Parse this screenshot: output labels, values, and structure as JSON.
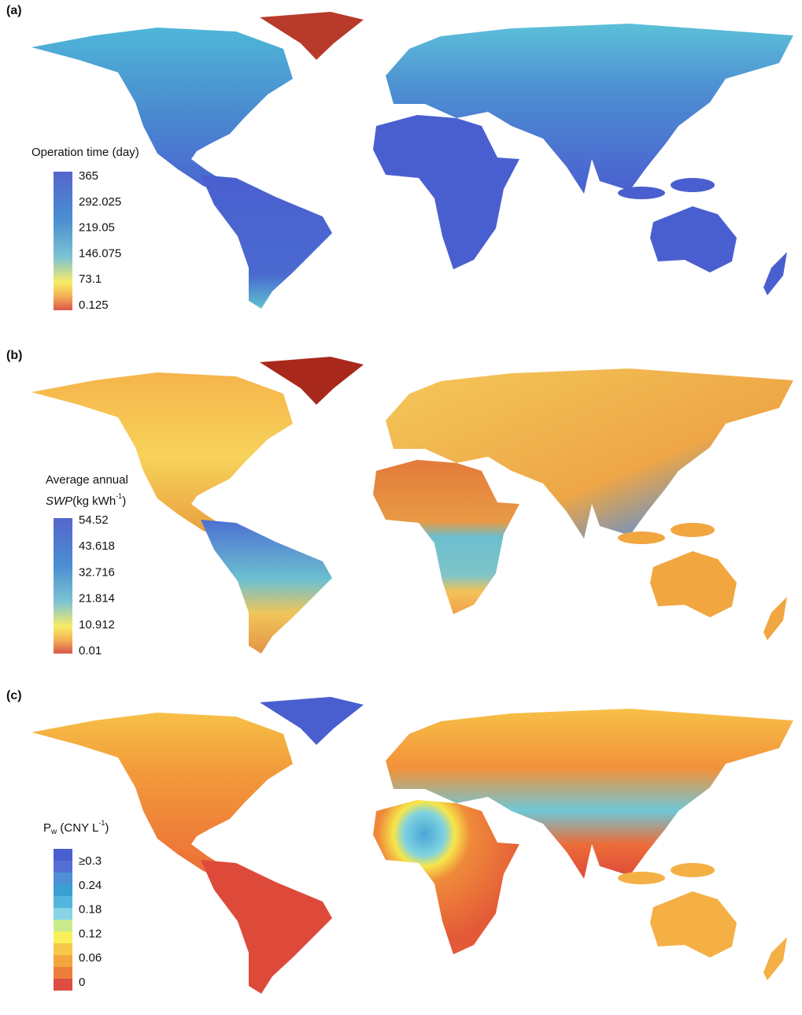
{
  "panels": [
    {
      "label": "(a)",
      "legend": {
        "title": [
          "Operation time (day)"
        ],
        "ticks": [
          "365",
          "292.025",
          "219.05",
          "146.075",
          "73.1",
          "0.125"
        ]
      }
    },
    {
      "label": "(b)",
      "legend": {
        "title": [
          "Average annual"
        ],
        "title_italic": "SWP",
        "title_unit": "(kg kWh",
        "title_sup": "-1",
        "title_end": ")",
        "ticks": [
          "54.52",
          "43.618",
          "32.716",
          "21.814",
          "10.912",
          "0.01"
        ]
      }
    },
    {
      "label": "(c)",
      "legend": {
        "title_main": "P",
        "title_sub": "w",
        "title_unit": " (CNY L",
        "title_sup": "-1",
        "title_end": ")",
        "ticks": [
          "≥0.3",
          "0.24",
          "0.18",
          "0.12",
          "0.06",
          "0"
        ]
      }
    }
  ]
}
